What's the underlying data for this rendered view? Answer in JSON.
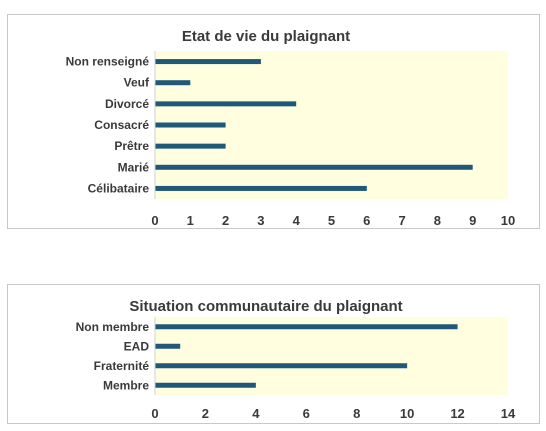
{
  "chart_data": [
    {
      "type": "bar",
      "orientation": "horizontal",
      "title": "Etat de vie du plaignant",
      "categories": [
        "Non renseigné",
        "Veuf",
        "Divorcé",
        "Consacré",
        "Prêtre",
        "Marié",
        "Célibataire"
      ],
      "values": [
        3,
        1,
        4,
        2,
        2,
        9,
        6
      ],
      "xlim": [
        0,
        10
      ],
      "ticks": [
        "0",
        "1",
        "2",
        "3",
        "4",
        "5",
        "6",
        "7",
        "8",
        "9",
        "10"
      ],
      "grid": false,
      "bar_color": "#1f5878",
      "plot_background": "#ffffe0"
    },
    {
      "type": "bar",
      "orientation": "horizontal",
      "title": "Situation communautaire du plaignant",
      "categories": [
        "Non membre",
        "EAD",
        "Fraternité",
        "Membre"
      ],
      "values": [
        12,
        1,
        10,
        4
      ],
      "xlim": [
        0,
        14
      ],
      "ticks": [
        "0",
        "2",
        "4",
        "6",
        "8",
        "10",
        "12",
        "14"
      ],
      "grid": false,
      "bar_color": "#1f5878",
      "plot_background": "#ffffe0"
    }
  ]
}
